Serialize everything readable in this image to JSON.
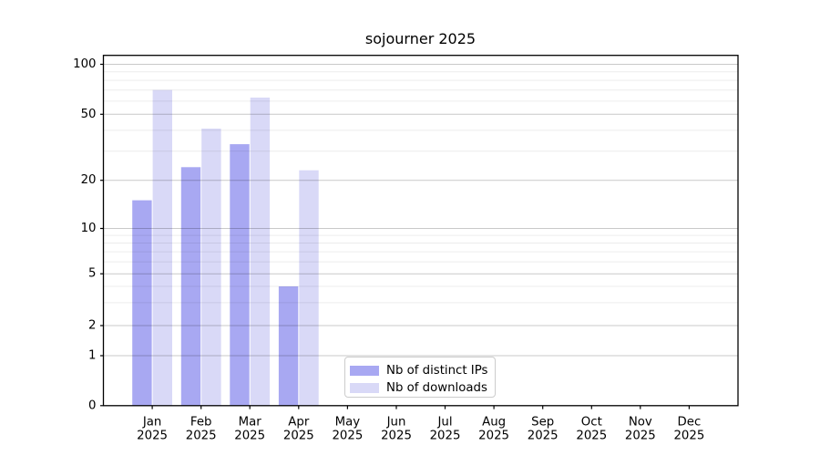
{
  "chart_data": {
    "type": "bar",
    "title": "sojourner 2025",
    "categories": [
      [
        "Jan",
        "2025"
      ],
      [
        "Feb",
        "2025"
      ],
      [
        "Mar",
        "2025"
      ],
      [
        "Apr",
        "2025"
      ],
      [
        "May",
        "2025"
      ],
      [
        "Jun",
        "2025"
      ],
      [
        "Jul",
        "2025"
      ],
      [
        "Aug",
        "2025"
      ],
      [
        "Sep",
        "2025"
      ],
      [
        "Oct",
        "2025"
      ],
      [
        "Nov",
        "2025"
      ],
      [
        "Dec",
        "2025"
      ]
    ],
    "series": [
      {
        "name": "Nb of distinct IPs",
        "color": "#a8a8f2",
        "values": [
          15,
          24,
          33,
          4,
          0,
          0,
          0,
          0,
          0,
          0,
          0,
          0
        ]
      },
      {
        "name": "Nb of downloads",
        "color": "#d9d9f7",
        "values": [
          70,
          41,
          63,
          23,
          0,
          0,
          0,
          0,
          0,
          0,
          0,
          0
        ]
      }
    ],
    "xlabel": "",
    "ylabel": "",
    "yscale": "log-like",
    "yticks": [
      0,
      1,
      2,
      5,
      10,
      20,
      50,
      100
    ],
    "y_minor_ticks": [
      3,
      4,
      6,
      7,
      8,
      9,
      30,
      40,
      60,
      70,
      80,
      90
    ],
    "ylim": [
      0,
      114
    ],
    "grid": "horizontal major and minor",
    "legend_position": "lower center",
    "colors": {
      "spine": "#000000",
      "major_grid": "#c9c9c9",
      "minor_grid": "#ececec",
      "text": "#000000",
      "legend_border": "#cccccc"
    }
  }
}
